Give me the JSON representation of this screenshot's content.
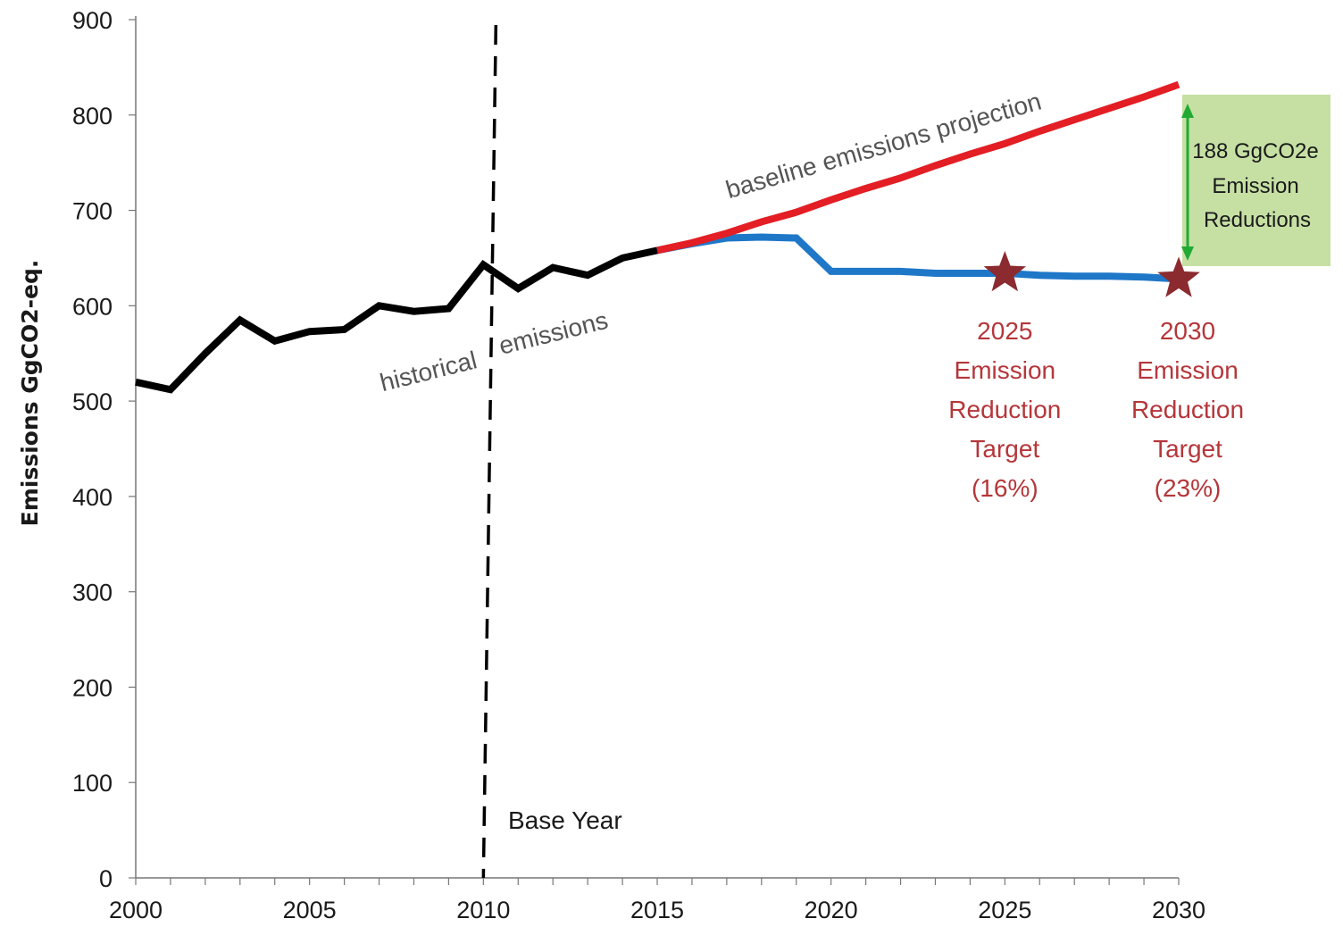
{
  "chart_data": {
    "type": "line",
    "title": "",
    "xlabel": "",
    "ylabel": "Emissions GgCO2-eq.",
    "xlim": [
      2000,
      2030
    ],
    "ylim": [
      0,
      900
    ],
    "x_ticks": [
      2000,
      2005,
      2010,
      2015,
      2020,
      2025,
      2030
    ],
    "y_ticks": [
      0,
      100,
      200,
      300,
      400,
      500,
      600,
      700,
      800,
      900
    ],
    "grid": false,
    "legend": "none",
    "series": [
      {
        "key": "historical",
        "color": "#000000",
        "x": [
          2000,
          2001,
          2002,
          2003,
          2004,
          2005,
          2006,
          2007,
          2008,
          2009,
          2010,
          2011,
          2012,
          2013,
          2014,
          2015
        ],
        "y": [
          520,
          512,
          550,
          585,
          563,
          573,
          575,
          600,
          594,
          597,
          643,
          618,
          640,
          632,
          650,
          658
        ]
      },
      {
        "key": "baseline",
        "color": "#e31e24",
        "x": [
          2015,
          2016,
          2017,
          2018,
          2019,
          2020,
          2021,
          2022,
          2023,
          2024,
          2025,
          2026,
          2027,
          2028,
          2029,
          2030
        ],
        "y": [
          658,
          666,
          676,
          688,
          698,
          711,
          723,
          734,
          747,
          759,
          770,
          783,
          795,
          807,
          819,
          832
        ]
      },
      {
        "key": "mitigation",
        "color": "#1f77c8",
        "x": [
          2015,
          2016,
          2017,
          2018,
          2019,
          2020,
          2021,
          2022,
          2023,
          2024,
          2025,
          2026,
          2027,
          2028,
          2029,
          2030
        ],
        "y": [
          658,
          665,
          671,
          672,
          671,
          636,
          636,
          636,
          634,
          634,
          634,
          632,
          631,
          631,
          630,
          628
        ]
      }
    ],
    "base_year": {
      "x": 2010,
      "label": "Base Year"
    },
    "targets": [
      {
        "x": 2025,
        "y": 634,
        "lines": [
          "2025",
          "Emission",
          "Reduction",
          "Target",
          "(16%)"
        ]
      },
      {
        "x": 2030,
        "y": 628,
        "lines": [
          "2030",
          "Emission",
          "Reduction",
          "Target",
          "(23%)"
        ]
      }
    ],
    "annotations": {
      "historical_left": "historical",
      "historical_right": "emissions",
      "baseline": "baseline emissions projection",
      "reduction_box": [
        "188 GgCO2e",
        "Emission",
        "Reductions"
      ]
    },
    "colors": {
      "target_red": "#b5363a",
      "star": "#8b2b2f",
      "box_fill": "#c6e0a4",
      "arrow": "#22aa33"
    }
  }
}
